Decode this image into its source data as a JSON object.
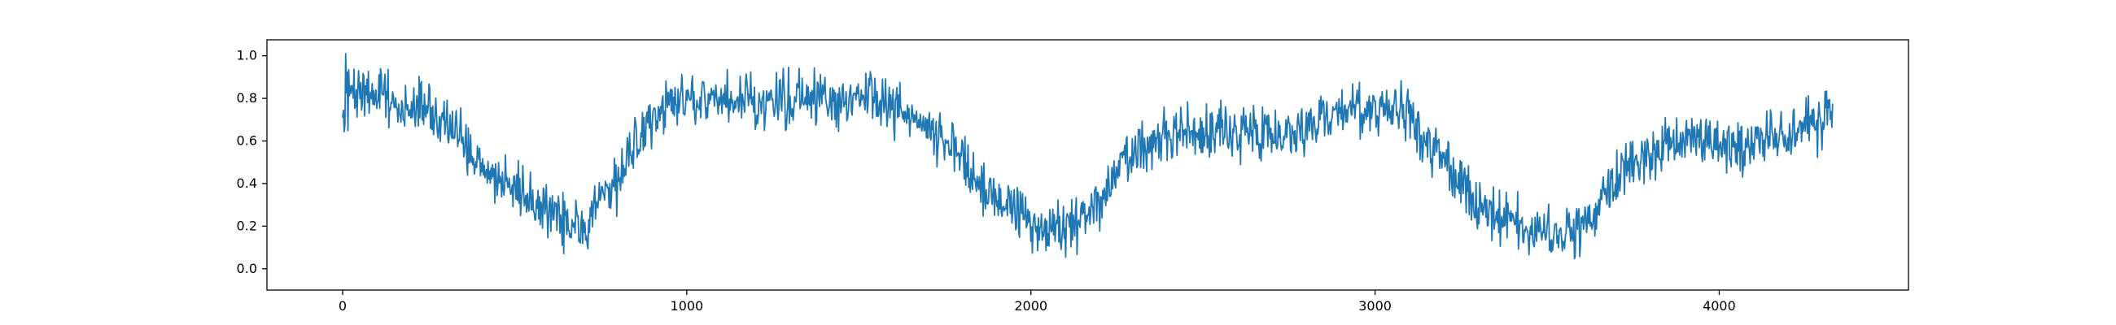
{
  "chart_data": {
    "type": "line",
    "title": "",
    "xlabel": "",
    "ylabel": "",
    "xlim": [
      -220,
      4550
    ],
    "ylim": [
      -0.1,
      1.075
    ],
    "x_ticks": [
      0,
      1000,
      2000,
      3000,
      4000
    ],
    "x_tick_labels": [
      "0",
      "1000",
      "2000",
      "3000",
      "4000"
    ],
    "y_ticks": [
      0.0,
      0.2,
      0.4,
      0.6,
      0.8,
      1.0
    ],
    "y_tick_labels": [
      "0.0",
      "0.2",
      "0.4",
      "0.6",
      "0.8",
      "1.0"
    ],
    "grid": false,
    "legend": "none",
    "line_color": "#1f77b4",
    "series": [
      {
        "x": [
          0,
          20,
          50,
          100,
          150,
          200,
          250,
          300,
          350,
          400,
          450,
          500,
          550,
          600,
          650,
          700,
          750,
          800,
          850,
          900,
          950,
          1000,
          1050,
          1100,
          1150,
          1200,
          1250,
          1300,
          1350,
          1400,
          1450,
          1500,
          1550,
          1600,
          1650,
          1700,
          1750,
          1800,
          1850,
          1900,
          1950,
          2000,
          2050,
          2100,
          2150,
          2200,
          2250,
          2300,
          2350,
          2400,
          2450,
          2500,
          2550,
          2600,
          2650,
          2700,
          2750,
          2800,
          2850,
          2900,
          2950,
          3000,
          3050,
          3100,
          3150,
          3200,
          3250,
          3300,
          3350,
          3400,
          3450,
          3500,
          3550,
          3600,
          3650,
          3700,
          3750,
          3800,
          3850,
          3900,
          3950,
          4000,
          4050,
          4100,
          4150,
          4200,
          4250,
          4300,
          4330
        ],
        "values": [
          0.75,
          0.82,
          0.85,
          0.83,
          0.8,
          0.78,
          0.75,
          0.68,
          0.58,
          0.5,
          0.45,
          0.38,
          0.32,
          0.25,
          0.2,
          0.2,
          0.28,
          0.4,
          0.6,
          0.72,
          0.76,
          0.78,
          0.8,
          0.82,
          0.8,
          0.78,
          0.79,
          0.8,
          0.8,
          0.8,
          0.78,
          0.8,
          0.8,
          0.76,
          0.72,
          0.66,
          0.62,
          0.5,
          0.4,
          0.32,
          0.26,
          0.22,
          0.2,
          0.2,
          0.22,
          0.3,
          0.45,
          0.55,
          0.6,
          0.62,
          0.63,
          0.65,
          0.65,
          0.65,
          0.65,
          0.64,
          0.65,
          0.65,
          0.7,
          0.75,
          0.75,
          0.76,
          0.74,
          0.7,
          0.6,
          0.5,
          0.4,
          0.3,
          0.25,
          0.23,
          0.2,
          0.18,
          0.17,
          0.2,
          0.28,
          0.4,
          0.5,
          0.55,
          0.58,
          0.6,
          0.6,
          0.58,
          0.58,
          0.6,
          0.62,
          0.65,
          0.68,
          0.7,
          0.75
        ]
      }
    ]
  }
}
